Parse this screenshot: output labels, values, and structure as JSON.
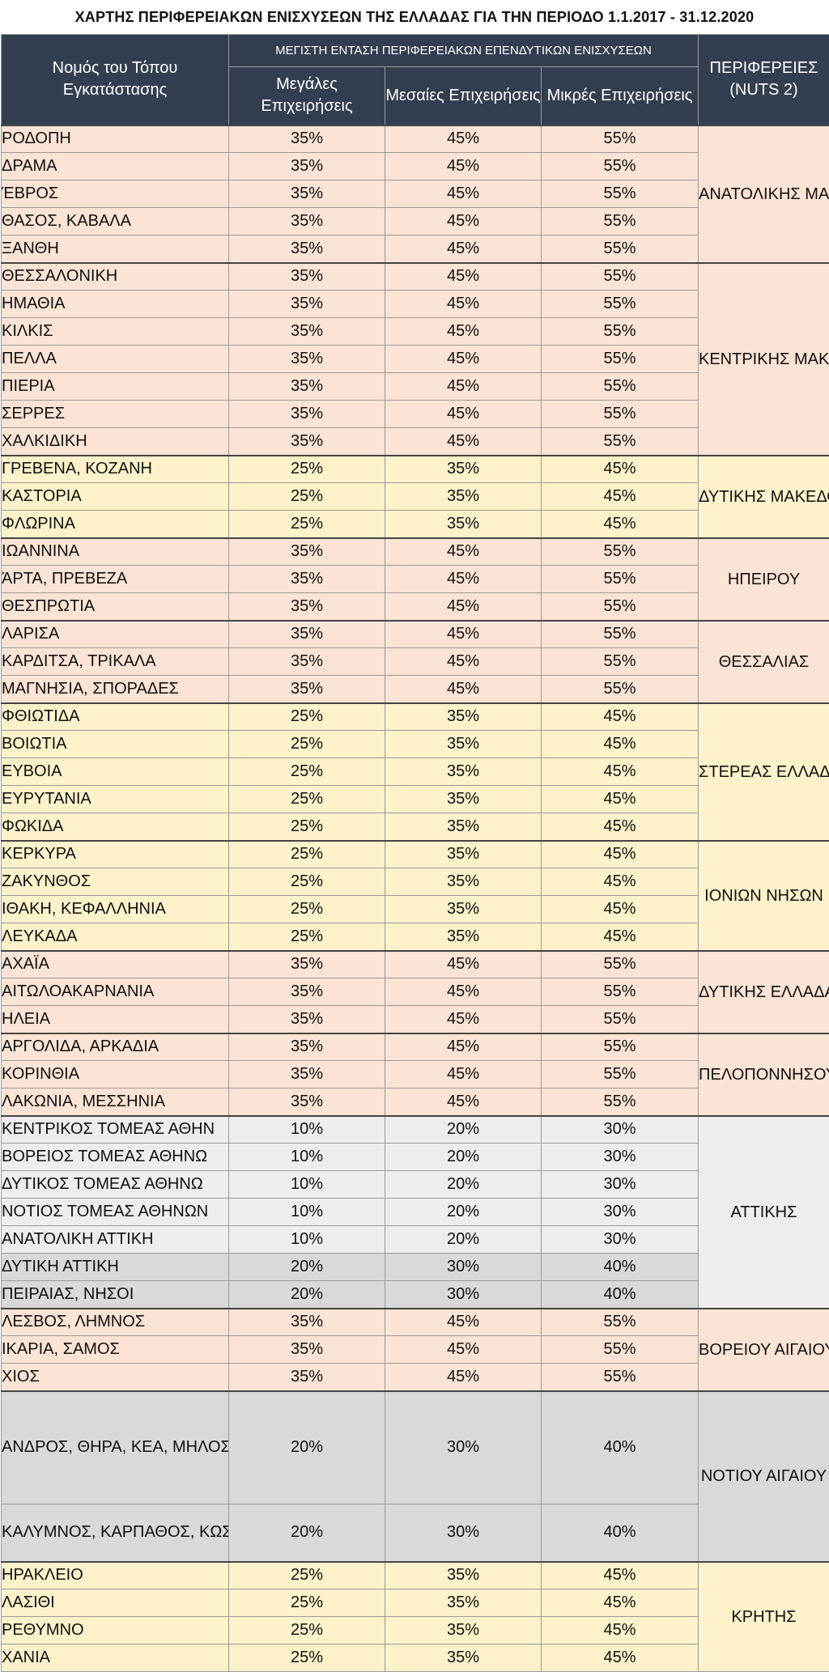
{
  "title": "ΧΑΡΤΗΣ ΠΕΡΙΦΕΡΕΙΑΚΩΝ ΕΝΙΣΧΥΣΕΩΝ ΤΗΣ ΕΛΛΑΔΑΣ ΓΙΑ ΤΗΝ ΠΕΡΙΟΔΟ 1.1.2017 - 31.12.2020",
  "header": {
    "nomos": "Νομός του Τόπου Εγκατάστασης",
    "top": "ΜΕΓΙΣΤΗ ΕΝΤΑΣΗ ΠΕΡΙΦΕΡΕΙΑΚΩΝ ΕΠΕΝΔΥΤΙΚΩΝ ΕΝΙΣΧΥΣΕΩΝ",
    "large": "Μεγάλες Επιχειρήσεις",
    "medium": "Μεσαίες Επιχειρήσεις",
    "small": "Μικρές Επιχειρήσεις",
    "region": "ΠΕΡΙΦΕΡΕΙΕΣ (NUTS 2)"
  },
  "groups": [
    {
      "region": "ΑΝΑΤΟΛΙΚΗΣ ΜΑΚΕΔΟΝΙΑΣ ΚΑΙ ΘΡΑΚΗΣ",
      "color": "#fbe4d5",
      "rows": [
        {
          "name": "ΡΟΔΟΠΗ",
          "large": "35%",
          "medium": "45%",
          "small": "55%"
        },
        {
          "name": "ΔΡΑΜΑ",
          "large": "35%",
          "medium": "45%",
          "small": "55%"
        },
        {
          "name": "ΈΒΡΟΣ",
          "large": "35%",
          "medium": "45%",
          "small": "55%"
        },
        {
          "name": "ΘΑΣΟΣ, ΚΑΒΑΛΑ",
          "large": "35%",
          "medium": "45%",
          "small": "55%"
        },
        {
          "name": "ΞΑΝΘΗ",
          "large": "35%",
          "medium": "45%",
          "small": "55%"
        }
      ]
    },
    {
      "region": "ΚΕΝΤΡΙΚΗΣ ΜΑΚΕΔΟΝΙΑΣ",
      "color": "#fbe4d5",
      "rows": [
        {
          "name": "ΘΕΣΣΑΛΟΝΙΚΗ",
          "large": "35%",
          "medium": "45%",
          "small": "55%"
        },
        {
          "name": "ΗΜΑΘΙΑ",
          "large": "35%",
          "medium": "45%",
          "small": "55%"
        },
        {
          "name": "ΚΙΛΚΙΣ",
          "large": "35%",
          "medium": "45%",
          "small": "55%"
        },
        {
          "name": "ΠΕΛΛΑ",
          "large": "35%",
          "medium": "45%",
          "small": "55%"
        },
        {
          "name": "ΠΙΕΡΙΑ",
          "large": "35%",
          "medium": "45%",
          "small": "55%"
        },
        {
          "name": "ΣΕΡΡΕΣ",
          "large": "35%",
          "medium": "45%",
          "small": "55%"
        },
        {
          "name": "ΧΑΛΚΙΔΙΚΗ",
          "large": "35%",
          "medium": "45%",
          "small": "55%"
        }
      ]
    },
    {
      "region": "ΔΥΤΙΚΗΣ ΜΑΚΕΔΟΝΙΑΣ",
      "color": "#fef2cb",
      "rows": [
        {
          "name": "ΓΡΕΒΕΝΑ, ΚΟΖΑΝΗ",
          "large": "25%",
          "medium": "35%",
          "small": "45%"
        },
        {
          "name": "ΚΑΣΤΟΡΙΑ",
          "large": "25%",
          "medium": "35%",
          "small": "45%"
        },
        {
          "name": "ΦΛΩΡΙΝΑ",
          "large": "25%",
          "medium": "35%",
          "small": "45%"
        }
      ]
    },
    {
      "region": "ΗΠΕΙΡΟΥ",
      "color": "#fbe4d5",
      "rows": [
        {
          "name": "ΙΩΑΝΝΙΝΑ",
          "large": "35%",
          "medium": "45%",
          "small": "55%"
        },
        {
          "name": "ΆΡΤΑ, ΠΡΕΒΕΖΑ",
          "large": "35%",
          "medium": "45%",
          "small": "55%"
        },
        {
          "name": "ΘΕΣΠΡΩΤΙΑ",
          "large": "35%",
          "medium": "45%",
          "small": "55%"
        }
      ]
    },
    {
      "region": "ΘΕΣΣΑΛΙΑΣ",
      "color": "#fbe4d5",
      "rows": [
        {
          "name": "ΛΑΡΙΣΑ",
          "large": "35%",
          "medium": "45%",
          "small": "55%"
        },
        {
          "name": "ΚΑΡΔΙΤΣΑ, ΤΡΙΚΑΛΑ",
          "large": "35%",
          "medium": "45%",
          "small": "55%"
        },
        {
          "name": "ΜΑΓΝΗΣΙΑ, ΣΠΟΡΑΔΕΣ",
          "large": "35%",
          "medium": "45%",
          "small": "55%"
        }
      ]
    },
    {
      "region": "ΣΤΕΡΕΑΣ ΕΛΛΑΔΑΣ",
      "color": "#fef2cb",
      "rows": [
        {
          "name": "ΦΘΙΩΤΙΔΑ",
          "large": "25%",
          "medium": "35%",
          "small": "45%"
        },
        {
          "name": "ΒΟΙΩΤΙΑ",
          "large": "25%",
          "medium": "35%",
          "small": "45%"
        },
        {
          "name": "ΕΥΒΟΙΑ",
          "large": "25%",
          "medium": "35%",
          "small": "45%"
        },
        {
          "name": "ΕΥΡΥΤΑΝΙΑ",
          "large": "25%",
          "medium": "35%",
          "small": "45%"
        },
        {
          "name": "ΦΩΚΙΔΑ",
          "large": "25%",
          "medium": "35%",
          "small": "45%"
        }
      ]
    },
    {
      "region": "ΙΟΝΙΩΝ ΝΗΣΩΝ",
      "color": "#fef2cb",
      "rows": [
        {
          "name": "ΚΕΡΚΥΡΑ",
          "large": "25%",
          "medium": "35%",
          "small": "45%"
        },
        {
          "name": "ΖΑΚΥΝΘΟΣ",
          "large": "25%",
          "medium": "35%",
          "small": "45%"
        },
        {
          "name": "ΙΘΑΚΗ, ΚΕΦΑΛΛΗΝΙΑ",
          "large": "25%",
          "medium": "35%",
          "small": "45%"
        },
        {
          "name": "ΛΕΥΚΑΔΑ",
          "large": "25%",
          "medium": "35%",
          "small": "45%"
        }
      ]
    },
    {
      "region": "ΔΥΤΙΚΗΣ ΕΛΛΑΔΑΣ",
      "color": "#fbe4d5",
      "rows": [
        {
          "name": "ΑΧΑΪΑ",
          "large": "35%",
          "medium": "45%",
          "small": "55%"
        },
        {
          "name": "ΑΙΤΩΛΟΑΚΑΡΝΑΝΙΑ",
          "large": "35%",
          "medium": "45%",
          "small": "55%"
        },
        {
          "name": "ΗΛΕΙΑ",
          "large": "35%",
          "medium": "45%",
          "small": "55%"
        }
      ]
    },
    {
      "region": "ΠΕΛΟΠΟΝΝΗΣΟΥ",
      "color": "#fbe4d5",
      "rows": [
        {
          "name": "ΑΡΓΟΛΙΔΑ, ΑΡΚΑΔΙΑ",
          "large": "35%",
          "medium": "45%",
          "small": "55%"
        },
        {
          "name": "ΚΟΡΙΝΘΙΑ",
          "large": "35%",
          "medium": "45%",
          "small": "55%"
        },
        {
          "name": "ΛΑΚΩΝΙΑ, ΜΕΣΣΗΝΙΑ",
          "large": "35%",
          "medium": "45%",
          "small": "55%"
        }
      ]
    },
    {
      "region": "ΑΤΤΙΚΗΣ",
      "color": "#ededed",
      "rows": [
        {
          "name": "ΚΕΝΤΡΙΚΟΣ ΤΟΜΕΑΣ ΑΘΗΝ",
          "large": "10%",
          "medium": "20%",
          "small": "30%"
        },
        {
          "name": "ΒΟΡΕΙΟΣ ΤΟΜΕΑΣ ΑΘΗΝΩ",
          "large": "10%",
          "medium": "20%",
          "small": "30%"
        },
        {
          "name": "ΔΥΤΙΚΟΣ ΤΟΜΕΑΣ ΑΘΗΝΩ",
          "large": "10%",
          "medium": "20%",
          "small": "30%"
        },
        {
          "name": "ΝΟΤΙΟΣ ΤΟΜΕΑΣ ΑΘΗΝΩΝ",
          "large": "10%",
          "medium": "20%",
          "small": "30%"
        },
        {
          "name": "ΑΝΑΤΟΛΙΚΗ ΑΤΤΙΚΗ",
          "large": "10%",
          "medium": "20%",
          "small": "30%"
        },
        {
          "name": "ΔΥΤΙΚΗ ΑΤΤΙΚΗ",
          "large": "20%",
          "medium": "30%",
          "small": "40%",
          "shade": "grey"
        },
        {
          "name": "ΠΕΙΡΑΙΑΣ, ΝΗΣΟΙ",
          "large": "20%",
          "medium": "30%",
          "small": "40%",
          "shade": "grey"
        }
      ]
    },
    {
      "region": "ΒΟΡΕΙΟΥ ΑΙΓΑΙΟΥ",
      "color": "#fbe4d5",
      "rows": [
        {
          "name": "ΛΕΣΒΟΣ, ΛΗΜΝΟΣ",
          "large": "35%",
          "medium": "45%",
          "small": "55%"
        },
        {
          "name": "ΙΚΑΡΙΑ, ΣΑΜΟΣ",
          "large": "35%",
          "medium": "45%",
          "small": "55%"
        },
        {
          "name": "ΧΙΟΣ",
          "large": "35%",
          "medium": "45%",
          "small": "55%"
        }
      ]
    },
    {
      "region": "ΝΟΤΙΟΥ ΑΙΓΑΙΟΥ",
      "color": "#d9d9d9",
      "rows": [
        {
          "name": "ΑΝΔΡΟΣ, ΘΗΡΑ, ΚΕΑ, ΜΗΛΟΣ, ΜΥΚΟΝΟΣ, ΝΑΞΟΣ, ΠΑΡΟΣ, ΣΥΡΟΣ, ΤΗΝΟΣ",
          "large": "20%",
          "medium": "30%",
          "small": "40%",
          "multiline": 4
        },
        {
          "name": "ΚΑΛΥΜΝΟΣ, ΚΑΡΠΑΘΟΣ, ΚΩΣ, ΡΟΔΟΣ",
          "large": "20%",
          "medium": "30%",
          "small": "40%",
          "multiline": 2
        }
      ]
    },
    {
      "region": "ΚΡΗΤΗΣ",
      "color": "#fef2cb",
      "rows": [
        {
          "name": "ΗΡΑΚΛΕΙΟ",
          "large": "25%",
          "medium": "35%",
          "small": "45%"
        },
        {
          "name": "ΛΑΣΙΘΙ",
          "large": "25%",
          "medium": "35%",
          "small": "45%"
        },
        {
          "name": "ΡΕΘΥΜΝΟ",
          "large": "25%",
          "medium": "35%",
          "small": "45%"
        },
        {
          "name": "ΧΑΝΙΑ",
          "large": "25%",
          "medium": "35%",
          "small": "45%"
        }
      ]
    }
  ]
}
